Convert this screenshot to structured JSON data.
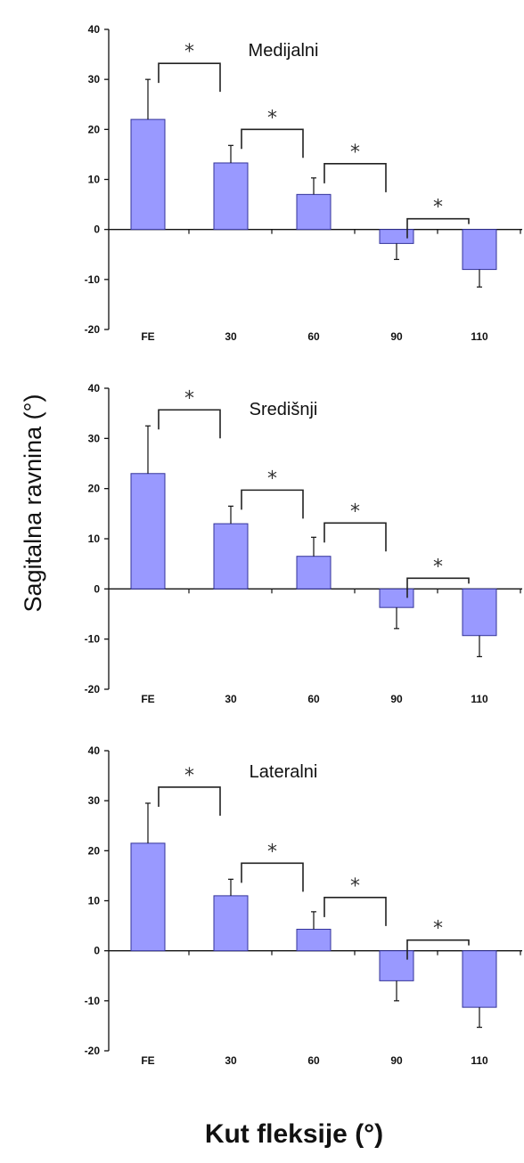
{
  "figure": {
    "ylabel": "Sagitalna ravnina (°)",
    "xlabel": "Kut fleksije (°)"
  },
  "colors": {
    "bar_fill": "#9999ff",
    "bar_stroke": "#333399",
    "axis": "#111111",
    "bracket": "#222222"
  },
  "chart_data": [
    {
      "type": "bar",
      "title": "Medijalni",
      "categories": [
        "FE",
        "30",
        "60",
        "90",
        "110"
      ],
      "values": [
        22,
        13.3,
        7,
        -2.8,
        -8
      ],
      "error": [
        8,
        3.5,
        3.3,
        3.2,
        3.5
      ],
      "ylim": [
        -20,
        40
      ],
      "yticks": [
        -20,
        -10,
        0,
        10,
        20,
        30,
        40
      ],
      "significance": [
        {
          "from": "FE",
          "to": "30",
          "label": "*"
        },
        {
          "from": "30",
          "to": "60",
          "label": "*"
        },
        {
          "from": "60",
          "to": "90",
          "label": "*"
        },
        {
          "from": "90",
          "to": "110",
          "label": "*"
        }
      ]
    },
    {
      "type": "bar",
      "title": "Središnji",
      "categories": [
        "FE",
        "30",
        "60",
        "90",
        "110"
      ],
      "values": [
        23,
        13,
        6.5,
        -3.7,
        -9.3
      ],
      "error": [
        9.5,
        3.5,
        3.8,
        4.2,
        4.2
      ],
      "ylim": [
        -20,
        40
      ],
      "yticks": [
        -20,
        -10,
        0,
        10,
        20,
        30,
        40
      ],
      "significance": [
        {
          "from": "FE",
          "to": "30",
          "label": "*"
        },
        {
          "from": "30",
          "to": "60",
          "label": "*"
        },
        {
          "from": "60",
          "to": "90",
          "label": "*"
        },
        {
          "from": "90",
          "to": "110",
          "label": "*"
        }
      ]
    },
    {
      "type": "bar",
      "title": "Lateralni",
      "categories": [
        "FE",
        "30",
        "60",
        "90",
        "110"
      ],
      "values": [
        21.5,
        11,
        4.3,
        -6,
        -11.3
      ],
      "error": [
        8,
        3.3,
        3.5,
        4,
        4
      ],
      "ylim": [
        -20,
        40
      ],
      "yticks": [
        -20,
        -10,
        0,
        10,
        20,
        30,
        40
      ],
      "significance": [
        {
          "from": "FE",
          "to": "30",
          "label": "*"
        },
        {
          "from": "30",
          "to": "60",
          "label": "*"
        },
        {
          "from": "60",
          "to": "90",
          "label": "*"
        },
        {
          "from": "90",
          "to": "110",
          "label": "*"
        }
      ]
    }
  ]
}
